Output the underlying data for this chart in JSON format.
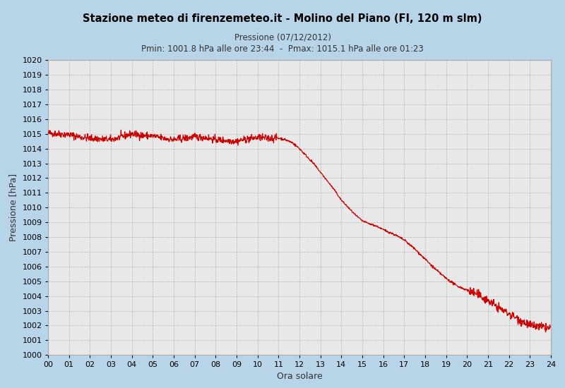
{
  "title1": "Stazione meteo di firenzemeteo.it - Molino del Piano (FI, 120 m slm)",
  "title2": "Pressione (07/12/2012)",
  "title3": "Pmin: 1001.8 hPa alle ore 23:44  -  Pmax: 1015.1 hPa alle ore 01:23",
  "ylabel": "Pressione [hPa]",
  "xlabel": "Ora solare",
  "ylim": [
    1000,
    1020
  ],
  "xlim": [
    0,
    1440
  ],
  "yticks": [
    1000,
    1001,
    1002,
    1003,
    1004,
    1005,
    1006,
    1007,
    1008,
    1009,
    1010,
    1011,
    1012,
    1013,
    1014,
    1015,
    1016,
    1017,
    1018,
    1019,
    1020
  ],
  "xtick_positions": [
    0,
    60,
    120,
    180,
    240,
    300,
    360,
    420,
    480,
    540,
    600,
    660,
    720,
    780,
    840,
    900,
    960,
    1020,
    1080,
    1140,
    1200,
    1260,
    1320,
    1380,
    1440
  ],
  "xtick_labels": [
    "00",
    "01",
    "02",
    "03",
    "04",
    "05",
    "06",
    "07",
    "08",
    "09",
    "10",
    "11",
    "12",
    "13",
    "14",
    "15",
    "16",
    "17",
    "18",
    "19",
    "20",
    "21",
    "22",
    "23",
    "24"
  ],
  "line_color": "#cc0000",
  "background_color": "#b8d4e8",
  "plot_bg_color": "#e8e8e8",
  "grid_color": "#555555",
  "title1_color": "#000000",
  "title2_color": "#333333",
  "title3_color": "#333333",
  "control_times": [
    0,
    30,
    60,
    90,
    120,
    150,
    180,
    210,
    240,
    270,
    300,
    330,
    360,
    390,
    420,
    450,
    480,
    510,
    540,
    570,
    600,
    630,
    660,
    680,
    700,
    720,
    740,
    760,
    780,
    800,
    820,
    840,
    860,
    880,
    900,
    920,
    940,
    960,
    990,
    1020,
    1050,
    1080,
    1110,
    1140,
    1170,
    1200,
    1230,
    1260,
    1290,
    1320,
    1350,
    1380,
    1410,
    1440
  ],
  "control_values": [
    1015.05,
    1015.0,
    1014.95,
    1014.8,
    1014.7,
    1014.65,
    1014.6,
    1014.8,
    1015.0,
    1014.9,
    1014.85,
    1014.7,
    1014.6,
    1014.7,
    1014.8,
    1014.75,
    1014.6,
    1014.55,
    1014.5,
    1014.65,
    1014.75,
    1014.7,
    1014.72,
    1014.6,
    1014.4,
    1014.0,
    1013.5,
    1013.0,
    1012.4,
    1011.8,
    1011.2,
    1010.5,
    1010.0,
    1009.5,
    1009.1,
    1008.9,
    1008.75,
    1008.5,
    1008.2,
    1007.8,
    1007.2,
    1006.5,
    1005.8,
    1005.2,
    1004.7,
    1004.4,
    1004.1,
    1003.7,
    1003.2,
    1002.8,
    1002.4,
    1002.0,
    1001.9,
    1001.8
  ]
}
